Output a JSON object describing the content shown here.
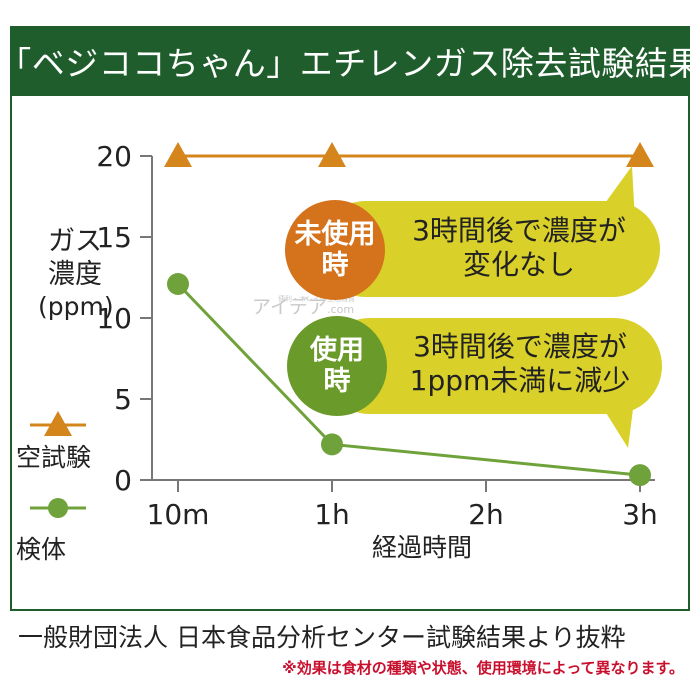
{
  "title": "「ベジココちゃん」エチレンガス除去試験結果",
  "ylabel_line1": "ガス",
  "ylabel_line2": "濃度",
  "ylabel_unit": "(ppm)",
  "xlabel": "経過時間",
  "source": "一般財団法人 日本食品分析センター試験結果より抜粋",
  "disclaimer": "※効果は食材の種類や状態、使用環境によって異なります。",
  "watermark": "アイデア",
  "watermark_domain": ".com",
  "watermark_tagline": "便利・キレイの生活雑貨",
  "callouts": {
    "unused": {
      "badge_line1": "未使用",
      "badge_line2": "時",
      "text_line1": "3時間後で濃度が",
      "text_line2": "変化なし",
      "badge_color": "#d4731c"
    },
    "used": {
      "badge_line1": "使用",
      "badge_line2": "時",
      "text_line1": "3時間後で濃度が",
      "text_line2": "1ppm未満に減少",
      "badge_color": "#6a9a2a"
    },
    "bubble_color": "#d9d02a"
  },
  "chart_data": {
    "type": "line",
    "categories": [
      "10m",
      "1h",
      "2h",
      "3h"
    ],
    "x_positions": [
      0,
      1,
      2,
      3
    ],
    "ylim": [
      0,
      20
    ],
    "yticks": [
      0,
      5,
      10,
      15,
      20
    ],
    "grid": false,
    "legend_placement": "left",
    "series": [
      {
        "name": "空試験",
        "marker": "triangle",
        "color": "#d4861c",
        "x": [
          0,
          1,
          3
        ],
        "values": [
          20,
          20,
          20
        ]
      },
      {
        "name": "検体",
        "marker": "circle",
        "color": "#6fa23a",
        "x": [
          0,
          1,
          3
        ],
        "values": [
          12.1,
          2.2,
          0.3
        ]
      }
    ]
  }
}
